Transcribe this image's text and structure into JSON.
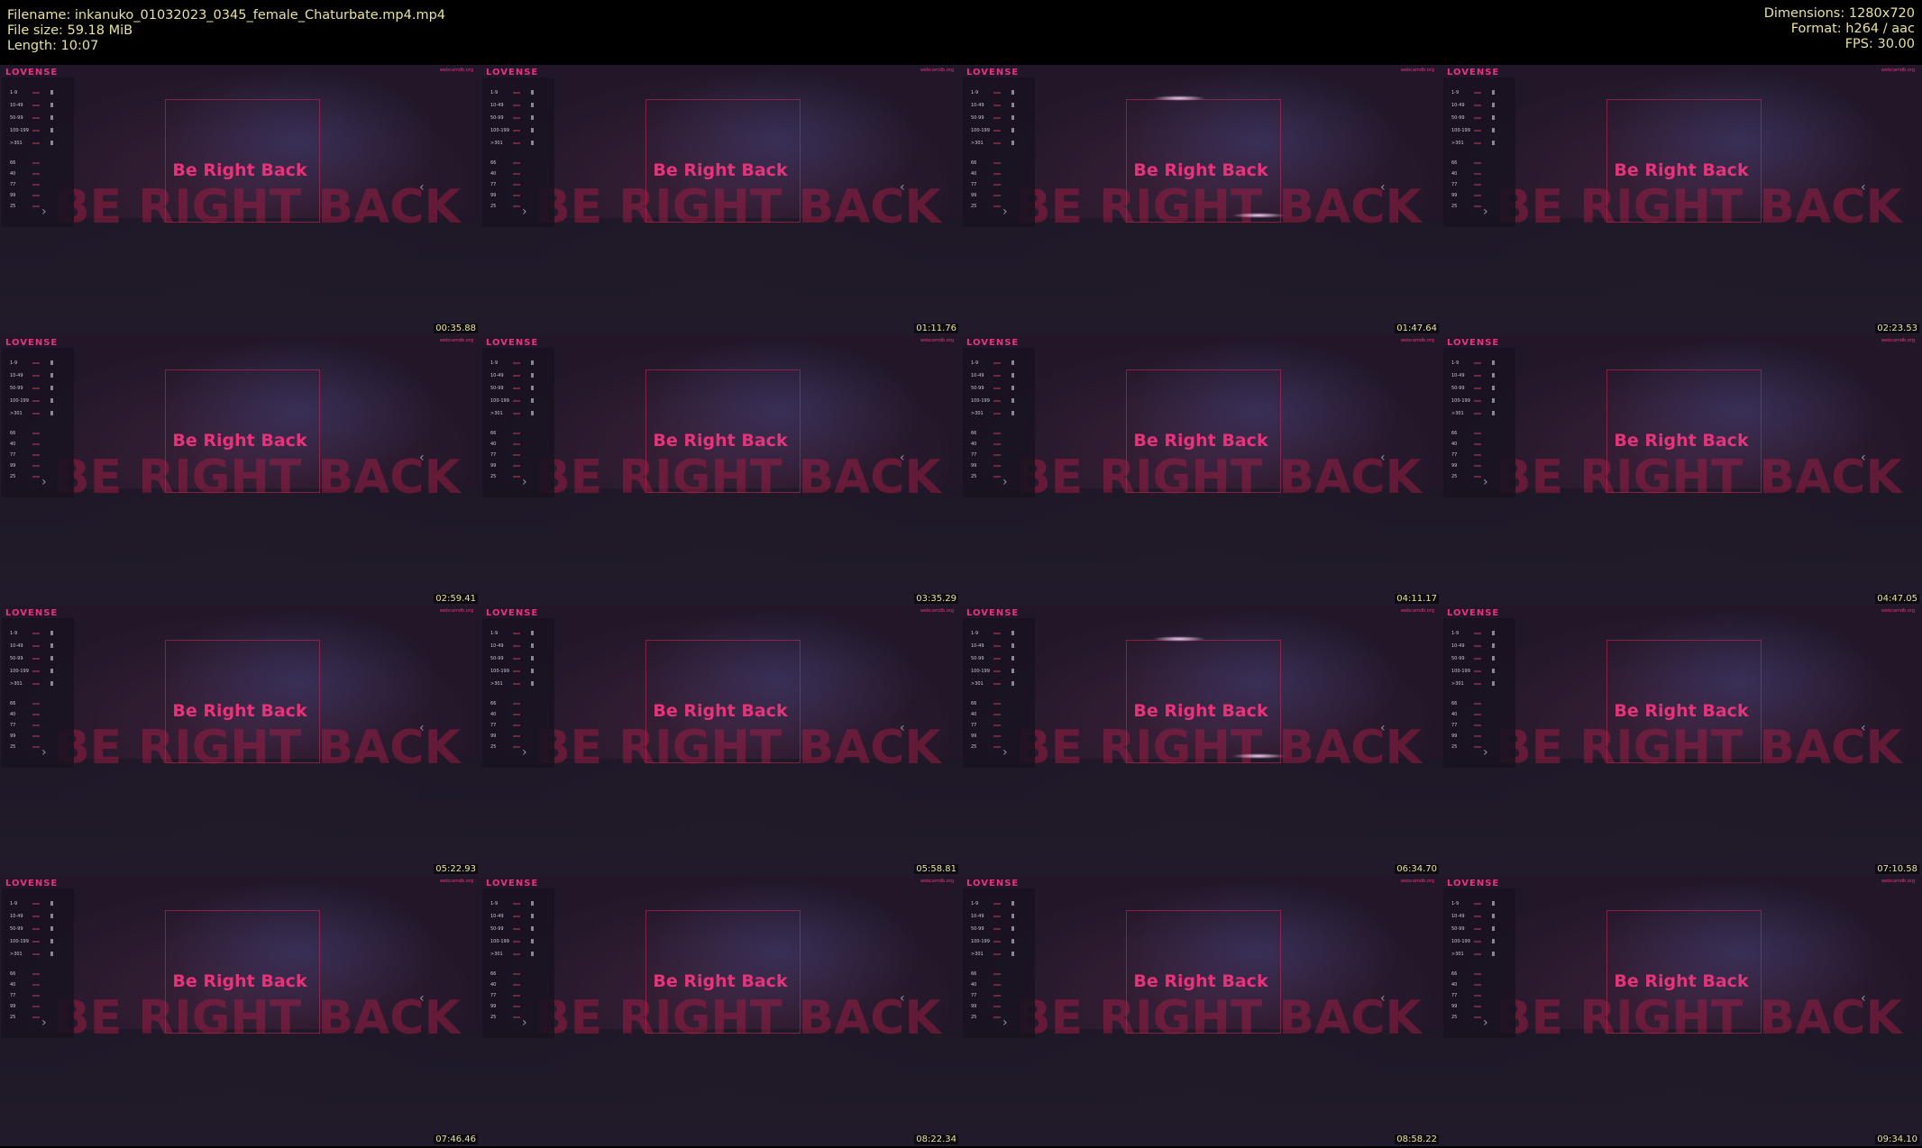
{
  "header": {
    "filename": "Filename: inkanuko_01032023_0345_female_Chaturbate.mp4.mp4",
    "filesize": "File size: 59.18 MiB",
    "length": "Length: 10:07",
    "dimensions": "Dimensions: 1280x720",
    "format": "Format: h264 / aac",
    "fps": "FPS: 30.00"
  },
  "overlay": {
    "brand": "LOVENSE",
    "site": "webcamdb.org",
    "brb_text": "Be Right Back",
    "big_text": "BE RIGHT BACK",
    "tip_levels": [
      "1-9",
      "10-49",
      "50-99",
      "100-199",
      ">301"
    ],
    "pattern_levels": [
      "66",
      "40",
      "77",
      "99",
      "25"
    ]
  },
  "thumbnails": [
    {
      "time": "00:35.88"
    },
    {
      "time": "01:11.76"
    },
    {
      "time": "01:47.64"
    },
    {
      "time": "02:23.53"
    },
    {
      "time": "02:59.41"
    },
    {
      "time": "03:35.29"
    },
    {
      "time": "04:11.17"
    },
    {
      "time": "04:47.05"
    },
    {
      "time": "05:22.93"
    },
    {
      "time": "05:58.81"
    },
    {
      "time": "06:34.70"
    },
    {
      "time": "07:10.58"
    },
    {
      "time": "07:46.46"
    },
    {
      "time": "08:22.34"
    },
    {
      "time": "08:58.22"
    },
    {
      "time": "09:34.10"
    }
  ]
}
